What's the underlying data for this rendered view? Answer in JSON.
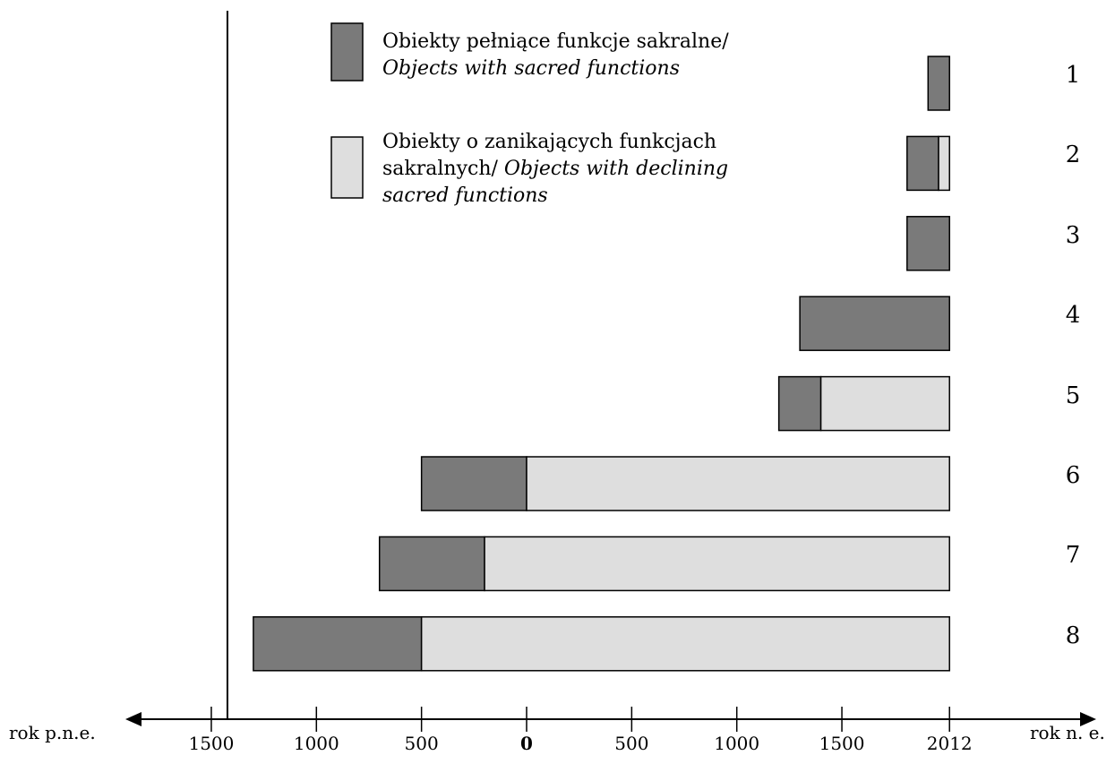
{
  "chart_data": {
    "type": "bar",
    "orientation": "horizontal",
    "stacked": true,
    "x_unit_labels": {
      "left": "rok p.n.e.",
      "right": "rok n. e."
    },
    "xlim": [
      -1600,
      2120
    ],
    "x_ticks": [
      {
        "value": -1500,
        "label": "1500"
      },
      {
        "value": -1000,
        "label": "1000"
      },
      {
        "value": -500,
        "label": "500"
      },
      {
        "value": 0,
        "label": "0",
        "bold": true
      },
      {
        "value": 500,
        "label": "500"
      },
      {
        "value": 1000,
        "label": "1000"
      },
      {
        "value": 1500,
        "label": "1500"
      },
      {
        "value": 2012,
        "label": "2012"
      }
    ],
    "vertical_reference_line": -1500,
    "categories": [
      "1",
      "2",
      "3",
      "4",
      "5",
      "6",
      "7",
      "8"
    ],
    "series": [
      {
        "name": "Obiekty pełniące funkcje sakralne/ Objects with sacred functions",
        "color": "#7a7a7a",
        "segments": [
          {
            "category": "1",
            "start": 1910,
            "end": 2012
          },
          {
            "category": "2",
            "start": 1810,
            "end": 1960
          },
          {
            "category": "3",
            "start": 1810,
            "end": 2012
          },
          {
            "category": "4",
            "start": 1300,
            "end": 2012
          },
          {
            "category": "5",
            "start": 1200,
            "end": 1400
          },
          {
            "category": "6",
            "start": -500,
            "end": 0
          },
          {
            "category": "7",
            "start": -700,
            "end": -200
          },
          {
            "category": "8",
            "start": -1300,
            "end": -500
          }
        ]
      },
      {
        "name": "Obiekty o zanikających funkcjach sakralnych/ Objects with declining sacred functions",
        "color": "#dedede",
        "segments": [
          {
            "category": "2",
            "start": 1960,
            "end": 2012
          },
          {
            "category": "5",
            "start": 1400,
            "end": 2012
          },
          {
            "category": "6",
            "start": 0,
            "end": 2012
          },
          {
            "category": "7",
            "start": -200,
            "end": 2012
          },
          {
            "category": "8",
            "start": -500,
            "end": 2012
          }
        ]
      }
    ],
    "legend": {
      "placement": "top-left",
      "entries": [
        {
          "line1": "Obiekty pełniące funkcje sakralne/",
          "line2_italic": "Objects with sacred functions"
        },
        {
          "line1": "Obiekty o zanikających funkcjach",
          "line2": "sakralnych/ ",
          "line2_italic": "Objects with declining",
          "line3_italic": "sacred functions"
        }
      ]
    }
  }
}
